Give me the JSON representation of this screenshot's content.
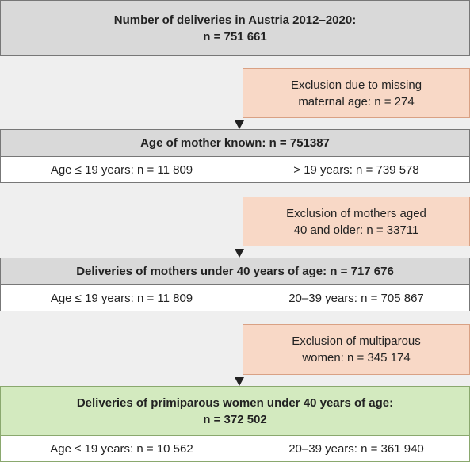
{
  "start": {
    "lines": [
      "Number of deliveries in Austria 2012–2020:",
      "n = 751 661"
    ]
  },
  "exclusions": [
    {
      "lines": [
        "Exclusion due to missing",
        "maternal age: n = 274"
      ]
    },
    {
      "lines": [
        "Exclusion of mothers aged",
        "40 and older: n = 33711"
      ]
    },
    {
      "lines": [
        "Exclusion of multiparous",
        "women: n = 345 174"
      ]
    }
  ],
  "stages": [
    {
      "lines": [
        "Age of mother known: n = 751387"
      ],
      "left": "Age ≤ 19 years: n = 11 809",
      "right": "> 19 years: n = 739 578"
    },
    {
      "lines": [
        "Deliveries of mothers under 40 years of age: n = 717 676"
      ],
      "left": "Age ≤ 19 years: n = 11 809",
      "right": "20–39 years: n = 705 867"
    },
    {
      "lines": [
        "Deliveries of primiparous women under 40 years of age:",
        "n = 372 502"
      ],
      "left": "Age ≤ 19 years: n = 10 562",
      "right": "20–39 years: n = 361 940"
    }
  ]
}
